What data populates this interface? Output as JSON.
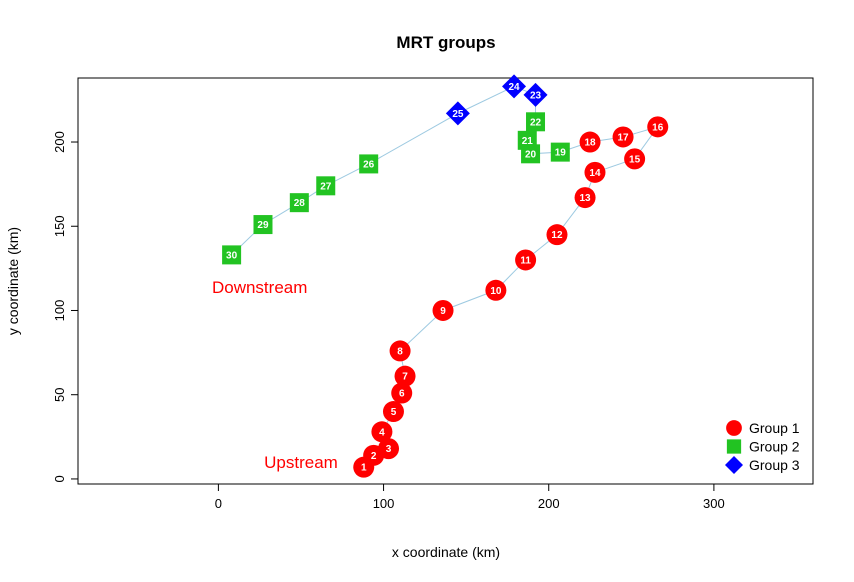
{
  "chart_data": {
    "type": "scatter",
    "title": "MRT groups",
    "xlabel": "x coordinate (km)",
    "ylabel": "y coordinate (km)",
    "xlim": [
      -85,
      360
    ],
    "ylim": [
      -3,
      238
    ],
    "xticks": [
      0,
      100,
      200,
      300
    ],
    "yticks": [
      0,
      50,
      100,
      150,
      200
    ],
    "grid": false,
    "line_color": "#9ecae1",
    "legend_position": "bottom-right",
    "groups": [
      {
        "name": "Group 1",
        "color": "#ff0000",
        "marker": "circle"
      },
      {
        "name": "Group 2",
        "color": "#22c322",
        "marker": "square"
      },
      {
        "name": "Group 3",
        "color": "#0000ff",
        "marker": "diamond"
      }
    ],
    "points": [
      {
        "id": "1",
        "x": 88,
        "y": 7,
        "group": 0
      },
      {
        "id": "2",
        "x": 94,
        "y": 14,
        "group": 0
      },
      {
        "id": "3",
        "x": 103,
        "y": 18,
        "group": 0
      },
      {
        "id": "4",
        "x": 99,
        "y": 28,
        "group": 0
      },
      {
        "id": "5",
        "x": 106,
        "y": 40,
        "group": 0
      },
      {
        "id": "6",
        "x": 111,
        "y": 51,
        "group": 0
      },
      {
        "id": "7",
        "x": 113,
        "y": 61,
        "group": 0
      },
      {
        "id": "8",
        "x": 110,
        "y": 76,
        "group": 0
      },
      {
        "id": "9",
        "x": 136,
        "y": 100,
        "group": 0
      },
      {
        "id": "10",
        "x": 168,
        "y": 112,
        "group": 0
      },
      {
        "id": "11",
        "x": 186,
        "y": 130,
        "group": 0
      },
      {
        "id": "12",
        "x": 205,
        "y": 145,
        "group": 0
      },
      {
        "id": "13",
        "x": 222,
        "y": 167,
        "group": 0
      },
      {
        "id": "14",
        "x": 228,
        "y": 182,
        "group": 0
      },
      {
        "id": "15",
        "x": 252,
        "y": 190,
        "group": 0
      },
      {
        "id": "16",
        "x": 266,
        "y": 209,
        "group": 0
      },
      {
        "id": "17",
        "x": 245,
        "y": 203,
        "group": 0
      },
      {
        "id": "18",
        "x": 225,
        "y": 200,
        "group": 0
      },
      {
        "id": "19",
        "x": 207,
        "y": 194,
        "group": 1
      },
      {
        "id": "20",
        "x": 189,
        "y": 193,
        "group": 1
      },
      {
        "id": "21",
        "x": 187,
        "y": 201,
        "group": 1
      },
      {
        "id": "22",
        "x": 192,
        "y": 212,
        "group": 1
      },
      {
        "id": "23",
        "x": 192,
        "y": 228,
        "group": 2
      },
      {
        "id": "24",
        "x": 179,
        "y": 233,
        "group": 2
      },
      {
        "id": "25",
        "x": 145,
        "y": 217,
        "group": 2
      },
      {
        "id": "26",
        "x": 91,
        "y": 187,
        "group": 1
      },
      {
        "id": "27",
        "x": 65,
        "y": 174,
        "group": 1
      },
      {
        "id": "28",
        "x": 49,
        "y": 164,
        "group": 1
      },
      {
        "id": "29",
        "x": 27,
        "y": 151,
        "group": 1
      },
      {
        "id": "30",
        "x": 8,
        "y": 133,
        "group": 1
      }
    ],
    "annotations": [
      {
        "text": "Upstream",
        "x": 50,
        "y": 10,
        "color": "#ff0000"
      },
      {
        "text": "Downstream",
        "x": 25,
        "y": 114,
        "color": "#ff0000"
      }
    ]
  }
}
